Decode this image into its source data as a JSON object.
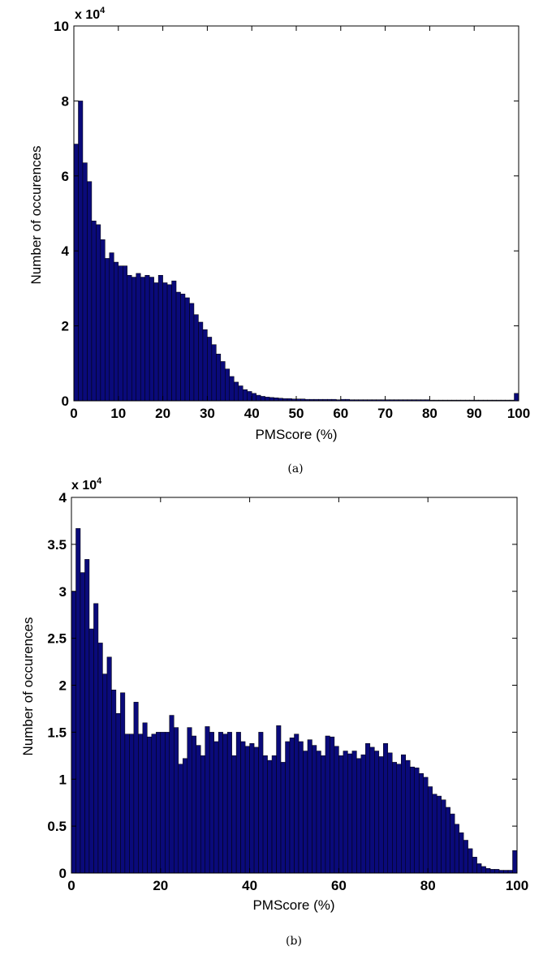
{
  "chart_data": [
    {
      "type": "bar",
      "panel_label": "(a)",
      "title": "",
      "xlabel": "PMScore (%)",
      "ylabel": "Number of occurences",
      "y_multiplier": "x 10",
      "y_multiplier_exp": "4",
      "xlim": [
        0,
        100
      ],
      "ylim": [
        0,
        10
      ],
      "x_ticks": [
        0,
        10,
        20,
        30,
        40,
        50,
        60,
        70,
        80,
        90,
        100
      ],
      "y_ticks": [
        0,
        2,
        4,
        6,
        8,
        10
      ],
      "bar_color": "#0a0a7a",
      "grid": false,
      "legend": "none",
      "bin_width": 1,
      "x": [
        0,
        1,
        2,
        3,
        4,
        5,
        6,
        7,
        8,
        9,
        10,
        11,
        12,
        13,
        14,
        15,
        16,
        17,
        18,
        19,
        20,
        21,
        22,
        23,
        24,
        25,
        26,
        27,
        28,
        29,
        30,
        31,
        32,
        33,
        34,
        35,
        36,
        37,
        38,
        39,
        40,
        41,
        42,
        43,
        44,
        45,
        46,
        47,
        48,
        49,
        50,
        51,
        52,
        53,
        54,
        55,
        56,
        57,
        58,
        59,
        60,
        61,
        62,
        63,
        64,
        65,
        66,
        67,
        68,
        69,
        70,
        71,
        72,
        73,
        74,
        75,
        76,
        77,
        78,
        79,
        80,
        81,
        82,
        83,
        84,
        85,
        86,
        87,
        88,
        89,
        90,
        91,
        92,
        93,
        94,
        95,
        96,
        97,
        98,
        99
      ],
      "values": [
        6.85,
        8.0,
        6.35,
        5.85,
        4.8,
        4.7,
        4.3,
        3.8,
        3.95,
        3.7,
        3.6,
        3.6,
        3.35,
        3.3,
        3.4,
        3.3,
        3.35,
        3.3,
        3.15,
        3.35,
        3.15,
        3.1,
        3.2,
        2.9,
        2.85,
        2.75,
        2.6,
        2.3,
        2.1,
        1.9,
        1.7,
        1.5,
        1.25,
        1.05,
        0.85,
        0.65,
        0.5,
        0.4,
        0.3,
        0.25,
        0.2,
        0.15,
        0.12,
        0.1,
        0.09,
        0.08,
        0.07,
        0.06,
        0.06,
        0.05,
        0.05,
        0.05,
        0.04,
        0.04,
        0.04,
        0.04,
        0.04,
        0.04,
        0.04,
        0.03,
        0.04,
        0.04,
        0.03,
        0.03,
        0.03,
        0.03,
        0.03,
        0.03,
        0.03,
        0.03,
        0.03,
        0.03,
        0.03,
        0.03,
        0.03,
        0.03,
        0.03,
        0.03,
        0.03,
        0.03,
        0.02,
        0.02,
        0.02,
        0.02,
        0.02,
        0.02,
        0.02,
        0.02,
        0.02,
        0.02,
        0.02,
        0.02,
        0.02,
        0.02,
        0.02,
        0.02,
        0.02,
        0.02,
        0.02,
        0.2
      ]
    },
    {
      "type": "bar",
      "panel_label": "(b)",
      "title": "",
      "xlabel": "PMScore (%)",
      "ylabel": "Number of occurences",
      "y_multiplier": "x 10",
      "y_multiplier_exp": "4",
      "xlim": [
        0,
        100
      ],
      "ylim": [
        0,
        4
      ],
      "x_ticks": [
        0,
        20,
        40,
        60,
        80,
        100
      ],
      "y_ticks": [
        0,
        0.5,
        1,
        1.5,
        2,
        2.5,
        3,
        3.5,
        4
      ],
      "y_tick_labels": [
        "0",
        "0.5",
        "1",
        "1.5",
        "2",
        "2.5",
        "3",
        "3.5",
        "4"
      ],
      "bar_color": "#0a0a7a",
      "grid": false,
      "legend": "none",
      "bin_width": 1,
      "x": [
        0,
        1,
        2,
        3,
        4,
        5,
        6,
        7,
        8,
        9,
        10,
        11,
        12,
        13,
        14,
        15,
        16,
        17,
        18,
        19,
        20,
        21,
        22,
        23,
        24,
        25,
        26,
        27,
        28,
        29,
        30,
        31,
        32,
        33,
        34,
        35,
        36,
        37,
        38,
        39,
        40,
        41,
        42,
        43,
        44,
        45,
        46,
        47,
        48,
        49,
        50,
        51,
        52,
        53,
        54,
        55,
        56,
        57,
        58,
        59,
        60,
        61,
        62,
        63,
        64,
        65,
        66,
        67,
        68,
        69,
        70,
        71,
        72,
        73,
        74,
        75,
        76,
        77,
        78,
        79,
        80,
        81,
        82,
        83,
        84,
        85,
        86,
        87,
        88,
        89,
        90,
        91,
        92,
        93,
        94,
        95,
        96,
        97,
        98,
        99
      ],
      "values": [
        3.0,
        3.67,
        3.2,
        3.34,
        2.6,
        2.87,
        2.45,
        2.12,
        2.3,
        1.95,
        1.7,
        1.92,
        1.48,
        1.48,
        1.82,
        1.48,
        1.6,
        1.45,
        1.48,
        1.5,
        1.5,
        1.5,
        1.68,
        1.55,
        1.16,
        1.22,
        1.55,
        1.46,
        1.36,
        1.25,
        1.56,
        1.5,
        1.4,
        1.5,
        1.48,
        1.5,
        1.25,
        1.5,
        1.4,
        1.35,
        1.38,
        1.34,
        1.5,
        1.25,
        1.2,
        1.25,
        1.57,
        1.18,
        1.4,
        1.44,
        1.48,
        1.4,
        1.3,
        1.42,
        1.36,
        1.3,
        1.25,
        1.46,
        1.45,
        1.35,
        1.25,
        1.3,
        1.27,
        1.3,
        1.22,
        1.26,
        1.38,
        1.34,
        1.3,
        1.24,
        1.38,
        1.28,
        1.18,
        1.16,
        1.26,
        1.2,
        1.13,
        1.12,
        1.06,
        1.02,
        0.92,
        0.84,
        0.82,
        0.78,
        0.7,
        0.63,
        0.52,
        0.43,
        0.35,
        0.26,
        0.17,
        0.1,
        0.07,
        0.05,
        0.04,
        0.04,
        0.03,
        0.03,
        0.03,
        0.24
      ]
    }
  ]
}
